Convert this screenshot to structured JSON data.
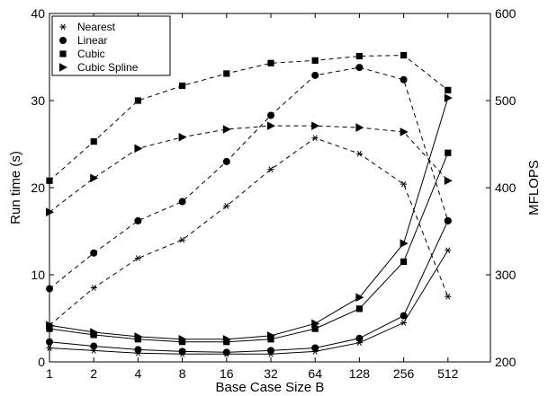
{
  "chart_data": {
    "type": "line",
    "xlabel": "Base Case Size B",
    "ylabel_left": "Run time (s)",
    "ylabel_right": "MFLOPS",
    "x": [
      1,
      2,
      4,
      8,
      16,
      32,
      64,
      128,
      256,
      512
    ],
    "x_tick_labels": [
      "1",
      "2",
      "4",
      "8",
      "16",
      "32",
      "64",
      "128",
      "256",
      "512"
    ],
    "x_scale": "log2",
    "ylim_left": [
      0,
      40
    ],
    "yticks_left": [
      0,
      10,
      20,
      30,
      40
    ],
    "ylim_right": [
      200,
      600
    ],
    "yticks_right": [
      200,
      300,
      400,
      500,
      600
    ],
    "grid": false,
    "legend_position": "top-left",
    "legend": [
      {
        "name": "Nearest",
        "marker": "asterisk"
      },
      {
        "name": "Linear",
        "marker": "circle"
      },
      {
        "name": "Cubic",
        "marker": "square"
      },
      {
        "name": "Cubic Spline",
        "marker": "triangle-right"
      }
    ],
    "series": [
      {
        "name": "Nearest",
        "metric": "runtime",
        "axis": "left",
        "line": "solid",
        "marker": "asterisk",
        "values": [
          1.6,
          1.3,
          1.0,
          0.9,
          0.9,
          0.9,
          1.2,
          2.2,
          4.5,
          12.8
        ]
      },
      {
        "name": "Linear",
        "metric": "runtime",
        "axis": "left",
        "line": "solid",
        "marker": "circle",
        "values": [
          2.3,
          1.8,
          1.4,
          1.2,
          1.1,
          1.3,
          1.6,
          2.7,
          5.3,
          16.2
        ]
      },
      {
        "name": "Cubic",
        "metric": "runtime",
        "axis": "left",
        "line": "solid",
        "marker": "square",
        "values": [
          3.8,
          3.1,
          2.6,
          2.3,
          2.3,
          2.6,
          3.8,
          6.1,
          11.5,
          24.0
        ]
      },
      {
        "name": "Cubic Spline",
        "metric": "runtime",
        "axis": "left",
        "line": "solid",
        "marker": "triangle-right",
        "values": [
          4.2,
          3.4,
          2.9,
          2.6,
          2.6,
          3.0,
          4.4,
          7.4,
          13.6,
          30.3
        ]
      },
      {
        "name": "Nearest",
        "metric": "mflops",
        "axis": "right",
        "line": "dashed",
        "marker": "asterisk",
        "values": [
          242,
          285,
          319,
          340,
          379,
          421,
          457,
          439,
          404,
          275
        ]
      },
      {
        "name": "Linear",
        "metric": "mflops",
        "axis": "right",
        "line": "dashed",
        "marker": "circle",
        "values": [
          284,
          325,
          362,
          384,
          430,
          483,
          529,
          538,
          524,
          362
        ]
      },
      {
        "name": "Cubic",
        "metric": "mflops",
        "axis": "right",
        "line": "dashed",
        "marker": "square",
        "values": [
          408,
          453,
          500,
          517,
          531,
          543,
          546,
          551,
          552,
          512
        ]
      },
      {
        "name": "Cubic Spline",
        "metric": "mflops",
        "axis": "right",
        "line": "dashed",
        "marker": "triangle-right",
        "values": [
          372,
          411,
          445,
          458,
          467,
          471,
          471,
          469,
          464,
          408
        ]
      }
    ]
  }
}
